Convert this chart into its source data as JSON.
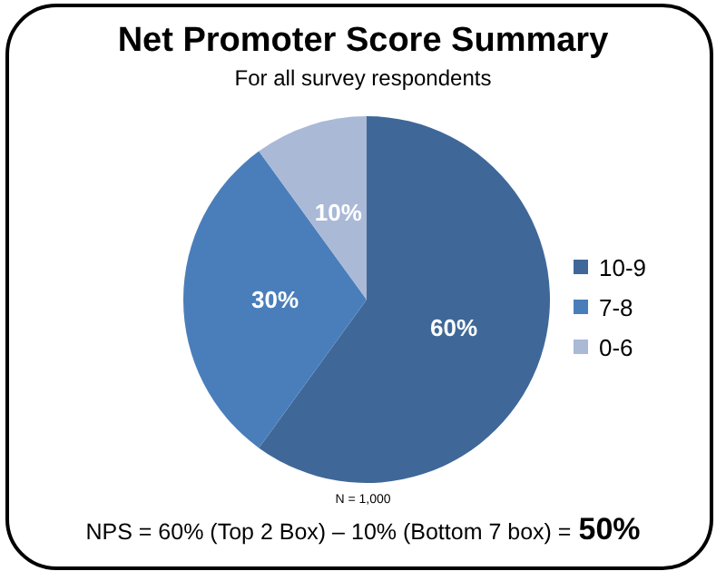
{
  "chart_data": {
    "type": "pie",
    "title": "Net Promoter Score Summary",
    "subtitle": "For all survey respondents",
    "categories": [
      "10-9",
      "7-8",
      "0-6"
    ],
    "values": [
      60,
      30,
      10
    ],
    "colors": [
      "#3f6899",
      "#4a7ebb",
      "#a9b9d6"
    ],
    "value_labels": [
      "60%",
      "30%",
      "10%"
    ],
    "legend": "right",
    "annotations": [
      "N = 1,000",
      "NPS = 60% (Top 2 Box) – 10% (Bottom 7 box) =",
      "50%"
    ]
  }
}
